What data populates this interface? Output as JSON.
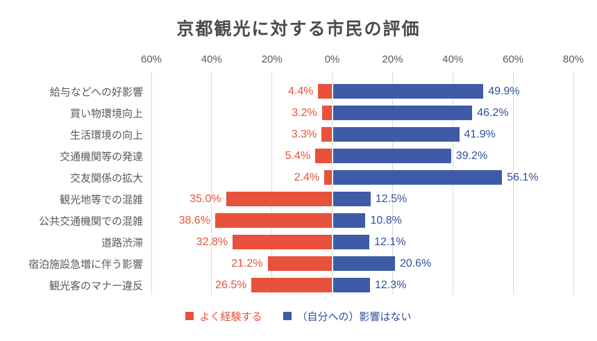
{
  "title": "京都観光に対する市民の評価",
  "chart_data": {
    "type": "bar",
    "orientation": "horizontal-diverging",
    "title": "京都観光に対する市民の評価",
    "categories": [
      "給与などへの好影響",
      "買い物環境向上",
      "生活環境の向上",
      "交通機関等の発達",
      "交友関係の拡大",
      "観光地等での混雑",
      "公共交通機関での混雑",
      "道路渋滞",
      "宿泊施設急増に伴う影響",
      "観光客のマナー違反"
    ],
    "series": [
      {
        "name": "よく経験する",
        "direction": "left",
        "color": "#E8513B",
        "label_color": "#E8513B",
        "values": [
          4.4,
          3.2,
          3.3,
          5.4,
          2.4,
          35.0,
          38.6,
          32.8,
          21.2,
          26.5
        ],
        "labels": [
          "4.4%",
          "3.2%",
          "3.3%",
          "5.4%",
          "2.4%",
          "35.0%",
          "38.6%",
          "32.8%",
          "21.2%",
          "26.5%"
        ]
      },
      {
        "name": "（自分への）影響はない",
        "direction": "right",
        "color": "#3D5BA6",
        "label_color": "#2F4F9E",
        "values": [
          49.9,
          46.2,
          41.9,
          39.2,
          56.1,
          12.5,
          10.8,
          12.1,
          20.6,
          12.3
        ],
        "labels": [
          "49.9%",
          "46.2%",
          "41.9%",
          "39.2%",
          "56.1%",
          "12.5%",
          "10.8%",
          "12.1%",
          "20.6%",
          "12.3%"
        ]
      }
    ],
    "x_axis": {
      "tick_labels": [
        "60%",
        "40%",
        "20%",
        "0%",
        "20%",
        "40%",
        "60%",
        "80%"
      ],
      "tick_values": [
        -60,
        -40,
        -20,
        0,
        20,
        40,
        60,
        80
      ],
      "range": [
        -60,
        80
      ]
    },
    "grid": true,
    "gridline_color": "#D9D9D9",
    "text_color": "#595959",
    "title_color": "#4a4a4a",
    "legend_position": "bottom"
  }
}
